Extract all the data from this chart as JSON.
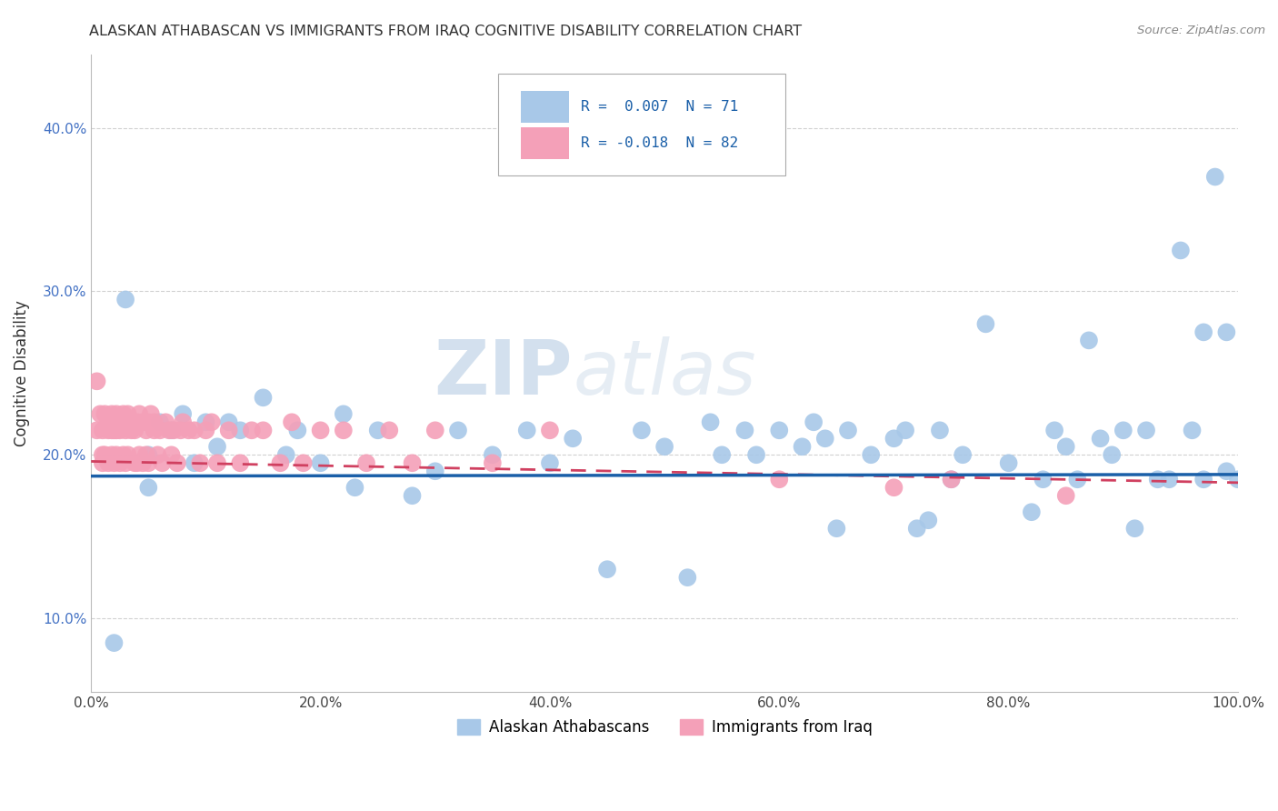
{
  "title": "ALASKAN ATHABASCAN VS IMMIGRANTS FROM IRAQ COGNITIVE DISABILITY CORRELATION CHART",
  "source": "Source: ZipAtlas.com",
  "ylabel": "Cognitive Disability",
  "xlim": [
    0.0,
    1.0
  ],
  "ylim": [
    0.055,
    0.445
  ],
  "ytick_labels": [
    "10.0%",
    "20.0%",
    "30.0%",
    "40.0%"
  ],
  "ytick_vals": [
    0.1,
    0.2,
    0.3,
    0.4
  ],
  "xtick_labels": [
    "0.0%",
    "20.0%",
    "40.0%",
    "60.0%",
    "80.0%",
    "100.0%"
  ],
  "xtick_vals": [
    0.0,
    0.2,
    0.4,
    0.6,
    0.8,
    1.0
  ],
  "legend_blue_label": "Alaskan Athabascans",
  "legend_pink_label": "Immigrants from Iraq",
  "legend_blue_r": "R =  0.007",
  "legend_blue_n": "N = 71",
  "legend_pink_r": "R = -0.018",
  "legend_pink_n": "N = 82",
  "blue_color": "#a8c8e8",
  "pink_color": "#f4a0b8",
  "blue_line_color": "#1a5fa8",
  "pink_line_color": "#d04060",
  "watermark_zip": "ZIP",
  "watermark_atlas": "atlas",
  "blue_scatter_x": [
    0.02,
    0.03,
    0.05,
    0.05,
    0.06,
    0.07,
    0.08,
    0.09,
    0.1,
    0.11,
    0.12,
    0.13,
    0.15,
    0.17,
    0.18,
    0.2,
    0.22,
    0.23,
    0.25,
    0.28,
    0.3,
    0.32,
    0.35,
    0.38,
    0.4,
    0.42,
    0.45,
    0.48,
    0.5,
    0.52,
    0.54,
    0.55,
    0.57,
    0.58,
    0.6,
    0.62,
    0.63,
    0.64,
    0.65,
    0.66,
    0.68,
    0.7,
    0.71,
    0.72,
    0.73,
    0.74,
    0.75,
    0.76,
    0.78,
    0.8,
    0.82,
    0.83,
    0.84,
    0.85,
    0.86,
    0.87,
    0.88,
    0.89,
    0.9,
    0.91,
    0.92,
    0.93,
    0.94,
    0.95,
    0.96,
    0.97,
    0.97,
    0.98,
    0.99,
    0.99,
    1.0
  ],
  "blue_scatter_y": [
    0.085,
    0.295,
    0.2,
    0.18,
    0.22,
    0.215,
    0.225,
    0.195,
    0.22,
    0.205,
    0.22,
    0.215,
    0.235,
    0.2,
    0.215,
    0.195,
    0.225,
    0.18,
    0.215,
    0.175,
    0.19,
    0.215,
    0.2,
    0.215,
    0.195,
    0.21,
    0.13,
    0.215,
    0.205,
    0.125,
    0.22,
    0.2,
    0.215,
    0.2,
    0.215,
    0.205,
    0.22,
    0.21,
    0.155,
    0.215,
    0.2,
    0.21,
    0.215,
    0.155,
    0.16,
    0.215,
    0.185,
    0.2,
    0.28,
    0.195,
    0.165,
    0.185,
    0.215,
    0.205,
    0.185,
    0.27,
    0.21,
    0.2,
    0.215,
    0.155,
    0.215,
    0.185,
    0.185,
    0.325,
    0.215,
    0.275,
    0.185,
    0.37,
    0.275,
    0.19,
    0.185
  ],
  "pink_scatter_x": [
    0.005,
    0.005,
    0.008,
    0.01,
    0.01,
    0.01,
    0.012,
    0.012,
    0.015,
    0.015,
    0.015,
    0.018,
    0.018,
    0.018,
    0.02,
    0.02,
    0.02,
    0.022,
    0.022,
    0.022,
    0.025,
    0.025,
    0.025,
    0.028,
    0.028,
    0.03,
    0.03,
    0.03,
    0.032,
    0.032,
    0.035,
    0.035,
    0.038,
    0.038,
    0.04,
    0.04,
    0.042,
    0.042,
    0.045,
    0.045,
    0.048,
    0.048,
    0.05,
    0.05,
    0.052,
    0.055,
    0.055,
    0.058,
    0.06,
    0.062,
    0.065,
    0.068,
    0.07,
    0.072,
    0.075,
    0.078,
    0.08,
    0.085,
    0.09,
    0.095,
    0.1,
    0.105,
    0.11,
    0.12,
    0.13,
    0.14,
    0.15,
    0.165,
    0.175,
    0.185,
    0.2,
    0.22,
    0.24,
    0.26,
    0.28,
    0.3,
    0.35,
    0.4,
    0.6,
    0.7,
    0.75,
    0.85
  ],
  "pink_scatter_y": [
    0.245,
    0.215,
    0.225,
    0.2,
    0.195,
    0.215,
    0.225,
    0.2,
    0.22,
    0.195,
    0.215,
    0.225,
    0.2,
    0.215,
    0.22,
    0.195,
    0.215,
    0.225,
    0.2,
    0.215,
    0.22,
    0.195,
    0.215,
    0.225,
    0.2,
    0.22,
    0.195,
    0.215,
    0.225,
    0.2,
    0.22,
    0.215,
    0.195,
    0.215,
    0.22,
    0.195,
    0.225,
    0.2,
    0.22,
    0.195,
    0.215,
    0.2,
    0.22,
    0.195,
    0.225,
    0.22,
    0.215,
    0.2,
    0.215,
    0.195,
    0.22,
    0.215,
    0.2,
    0.215,
    0.195,
    0.215,
    0.22,
    0.215,
    0.215,
    0.195,
    0.215,
    0.22,
    0.195,
    0.215,
    0.195,
    0.215,
    0.215,
    0.195,
    0.22,
    0.195,
    0.215,
    0.215,
    0.195,
    0.215,
    0.195,
    0.215,
    0.195,
    0.215,
    0.185,
    0.18,
    0.185,
    0.175
  ],
  "blue_trend_start_y": 0.187,
  "blue_trend_end_y": 0.188,
  "pink_trend_start_y": 0.196,
  "pink_trend_end_y": 0.183
}
